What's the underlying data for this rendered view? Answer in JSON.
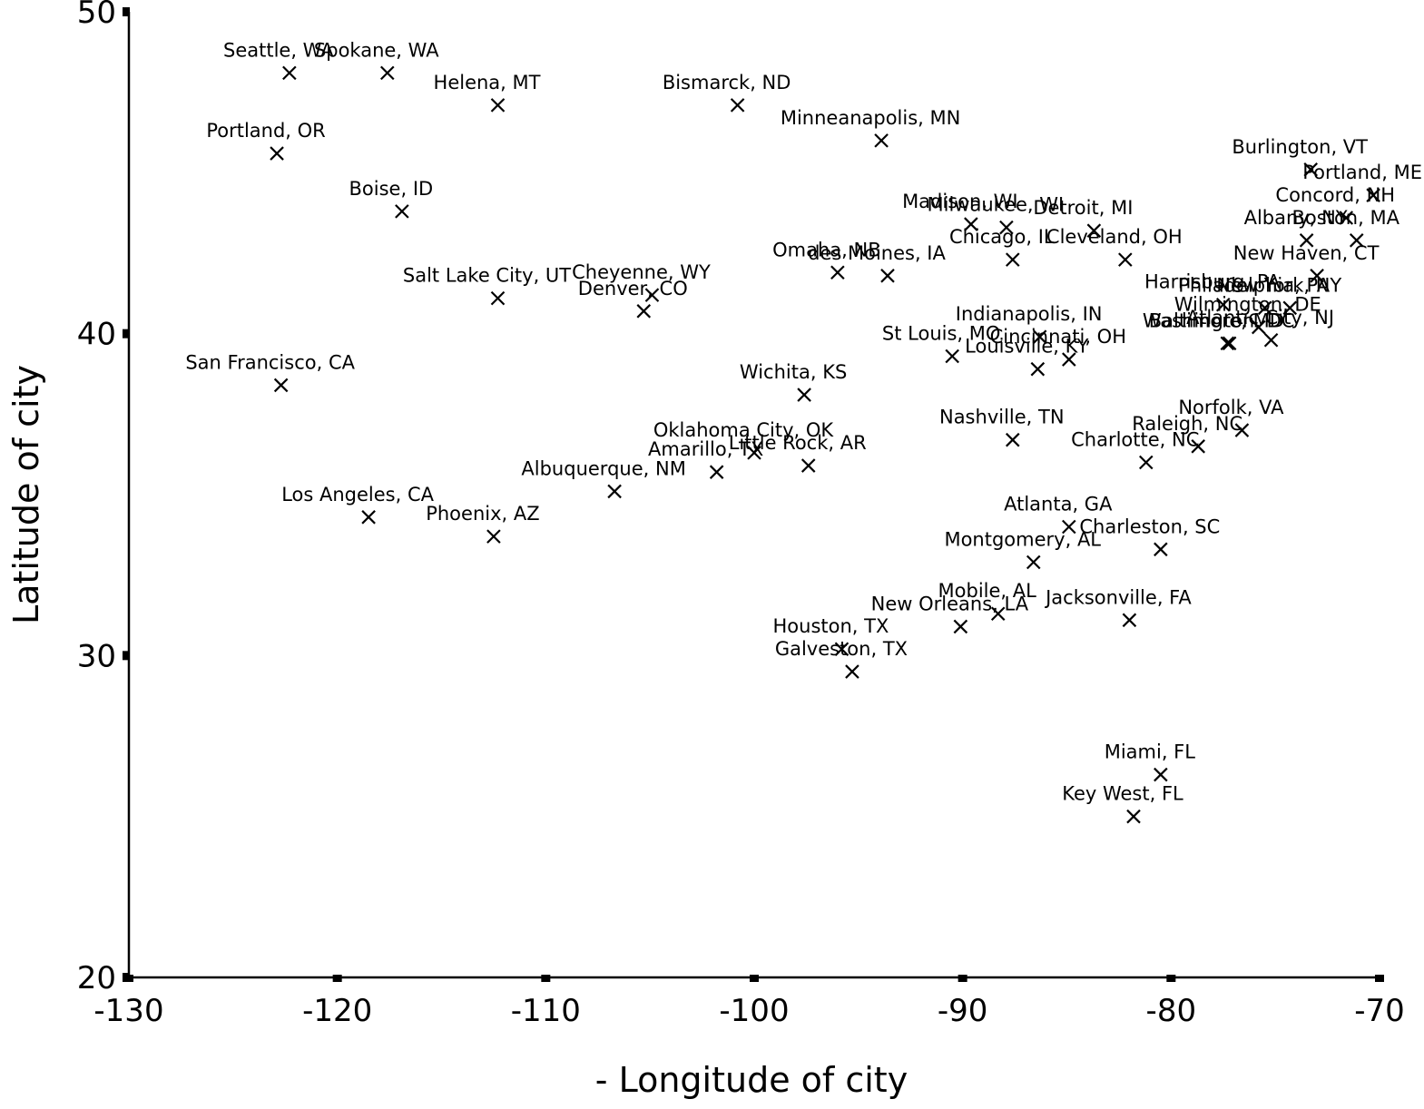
{
  "chart_data": {
    "type": "scatter",
    "title": "",
    "xlabel": "- Longitude of city",
    "ylabel": "Latitude of city",
    "xlim": [
      -130,
      -70
    ],
    "ylim": [
      20,
      50
    ],
    "xticks": [
      -130,
      -120,
      -110,
      -100,
      -90,
      -80,
      -70
    ],
    "yticks": [
      20,
      30,
      40,
      50
    ],
    "grid": false,
    "marker": "x",
    "points": [
      {
        "label": "Seattle, WA",
        "x": -122.3,
        "y": 48.1
      },
      {
        "label": "Spokane, WA",
        "x": -117.6,
        "y": 48.1
      },
      {
        "label": "Helena, MT",
        "x": -112.3,
        "y": 47.1
      },
      {
        "label": "Bismarck, ND",
        "x": -100.8,
        "y": 47.1
      },
      {
        "label": "Portland, OR",
        "x": -122.9,
        "y": 45.6
      },
      {
        "label": "Minneanapolis, MN",
        "x": -93.9,
        "y": 46.0
      },
      {
        "label": "Boise, ID",
        "x": -116.9,
        "y": 43.8
      },
      {
        "label": "Salt Lake City, UT",
        "x": -112.3,
        "y": 41.1
      },
      {
        "label": "Cheyenne, WY",
        "x": -104.9,
        "y": 41.2
      },
      {
        "label": "Denver, CO",
        "x": -105.3,
        "y": 40.7
      },
      {
        "label": "Omaha, NB",
        "x": -96.0,
        "y": 41.9
      },
      {
        "label": "des Moines, IA",
        "x": -93.6,
        "y": 41.8
      },
      {
        "label": "Madison, WI",
        "x": -89.6,
        "y": 43.4
      },
      {
        "label": "Milwaukee, WI",
        "x": -87.9,
        "y": 43.3
      },
      {
        "label": "Detroit, MI",
        "x": -83.7,
        "y": 43.2
      },
      {
        "label": "Chicago, IL",
        "x": -87.6,
        "y": 42.3
      },
      {
        "label": "Cleveland, OH",
        "x": -82.2,
        "y": 42.3
      },
      {
        "label": "Burlington, VT",
        "x": -73.3,
        "y": 45.1
      },
      {
        "label": "Portland, ME",
        "x": -70.3,
        "y": 44.3
      },
      {
        "label": "Concord, NH",
        "x": -71.6,
        "y": 43.6
      },
      {
        "label": "Boston, MA",
        "x": -71.1,
        "y": 42.9
      },
      {
        "label": "Albany, NY",
        "x": -73.5,
        "y": 42.9
      },
      {
        "label": "New Haven, CT",
        "x": -73.0,
        "y": 41.8
      },
      {
        "label": "Harrisburg, PA",
        "x": -77.5,
        "y": 40.9
      },
      {
        "label": "Philadelphia, PA",
        "x": -75.5,
        "y": 40.8
      },
      {
        "label": "New York, NY",
        "x": -74.3,
        "y": 40.8
      },
      {
        "label": "Wilmington, DE",
        "x": -75.8,
        "y": 40.2
      },
      {
        "label": "Atlantic City, NJ",
        "x": -75.2,
        "y": 39.8
      },
      {
        "label": "Washington, DC",
        "x": -77.2,
        "y": 39.7
      },
      {
        "label": "Baltimore, MD",
        "x": -77.3,
        "y": 39.7
      },
      {
        "label": "Indianapolis, IN",
        "x": -86.3,
        "y": 39.9
      },
      {
        "label": "St Louis, MO",
        "x": -90.5,
        "y": 39.3
      },
      {
        "label": "Cincinnati, OH",
        "x": -84.9,
        "y": 39.2
      },
      {
        "label": "Louisville, KY",
        "x": -86.4,
        "y": 38.9
      },
      {
        "label": "San Francisco, CA",
        "x": -122.7,
        "y": 38.4
      },
      {
        "label": "Wichita, KS",
        "x": -97.6,
        "y": 38.1
      },
      {
        "label": "Nashville, TN",
        "x": -87.6,
        "y": 36.7
      },
      {
        "label": "Norfolk, VA",
        "x": -76.6,
        "y": 37.0
      },
      {
        "label": "Raleigh, NC",
        "x": -78.7,
        "y": 36.5
      },
      {
        "label": "Charlotte, NC",
        "x": -81.2,
        "y": 36.0
      },
      {
        "label": "Oklahoma City, OK",
        "x": -100.0,
        "y": 36.3
      },
      {
        "label": "Amarillo, TX",
        "x": -101.8,
        "y": 35.7
      },
      {
        "label": "Little Rock, AR",
        "x": -97.4,
        "y": 35.9
      },
      {
        "label": "Albuquerque, NM",
        "x": -106.7,
        "y": 35.1
      },
      {
        "label": "Los Angeles, CA",
        "x": -118.5,
        "y": 34.3
      },
      {
        "label": "Phoenix, AZ",
        "x": -112.5,
        "y": 33.7
      },
      {
        "label": "Atlanta, GA",
        "x": -84.9,
        "y": 34.0
      },
      {
        "label": "Charleston, SC",
        "x": -80.5,
        "y": 33.3
      },
      {
        "label": "Montgomery, AL",
        "x": -86.6,
        "y": 32.9
      },
      {
        "label": "Mobile, AL",
        "x": -88.3,
        "y": 31.3
      },
      {
        "label": "New Orleans, LA",
        "x": -90.1,
        "y": 30.9
      },
      {
        "label": "Jacksonville, FA",
        "x": -82.0,
        "y": 31.1
      },
      {
        "label": "Houston, TX",
        "x": -95.8,
        "y": 30.2
      },
      {
        "label": "Galveston, TX",
        "x": -95.3,
        "y": 29.5
      },
      {
        "label": "Miami, FL",
        "x": -80.5,
        "y": 26.3
      },
      {
        "label": "Key West, FL",
        "x": -81.8,
        "y": 25.0
      }
    ]
  }
}
